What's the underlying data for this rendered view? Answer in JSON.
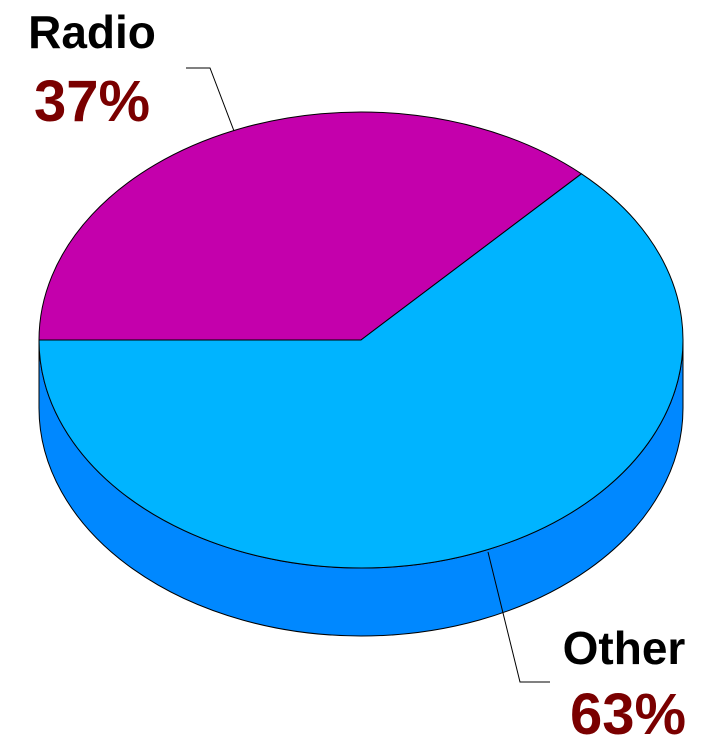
{
  "chart_data": {
    "type": "pie",
    "title": "",
    "slices": [
      {
        "label": "Radio",
        "value": 37,
        "value_label": "37%",
        "color": "#c400ac"
      },
      {
        "label": "Other",
        "value": 63,
        "value_label": "63%",
        "color": "#00b4ff"
      }
    ],
    "side_color": "#0088ff",
    "value_label_color": "#7a0000",
    "style": "3d-exploded-labels-outside"
  }
}
